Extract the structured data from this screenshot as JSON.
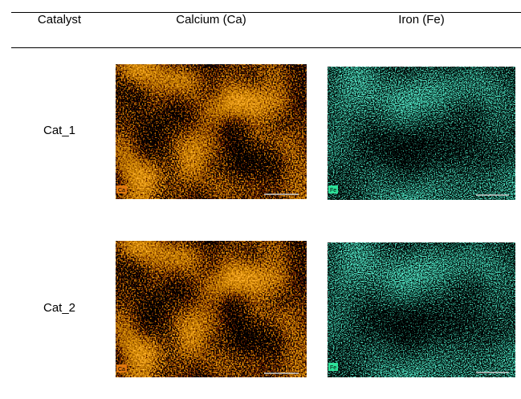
{
  "table": {
    "header": [
      "Catalyst",
      "Calcium (Ca)",
      "Iron (Fe)"
    ],
    "rows": [
      {
        "catalyst": "Cat_1",
        "maps": [
          "Ca",
          "Fe"
        ]
      },
      {
        "catalyst": "Cat_2",
        "maps": [
          "Ca",
          "Fe"
        ]
      }
    ]
  }
}
